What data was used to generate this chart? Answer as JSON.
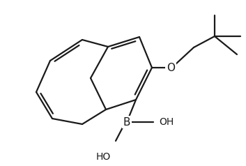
{
  "background": "#ffffff",
  "line_color": "#1a1a1a",
  "line_width": 1.6,
  "figsize": [
    3.53,
    2.38
  ],
  "dpi": 100,
  "xlim": [
    0,
    353
  ],
  "ylim": [
    0,
    238
  ]
}
